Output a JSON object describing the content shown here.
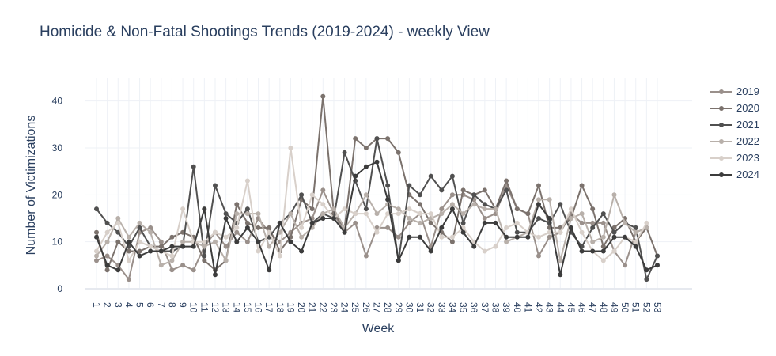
{
  "chart_data": {
    "type": "line",
    "title": "Homicide & Non-Fatal Shootings Trends (2019-2024) - weekly View",
    "xlabel": "Week",
    "ylabel": "Number of Victimizations",
    "ylim": [
      0,
      45
    ],
    "yticks": [
      0,
      10,
      20,
      30,
      40
    ],
    "grid": true,
    "legend_position": "right",
    "categories": [
      "1",
      "2",
      "3",
      "4",
      "5",
      "6",
      "7",
      "8",
      "9",
      "10",
      "11",
      "12",
      "13",
      "14",
      "15",
      "16",
      "17",
      "18",
      "19",
      "20",
      "21",
      "22",
      "23",
      "24",
      "25",
      "26",
      "27",
      "28",
      "29",
      "30",
      "31",
      "32",
      "33",
      "34",
      "35",
      "36",
      "37",
      "38",
      "39",
      "40",
      "41",
      "42",
      "43",
      "44",
      "45",
      "46",
      "47",
      "48",
      "49",
      "50",
      "51",
      "52",
      "53"
    ],
    "series": [
      {
        "name": "2019",
        "color": "#9a908b",
        "values": [
          6,
          7,
          5,
          2,
          12,
          13,
          10,
          4,
          5,
          4,
          9,
          12,
          9,
          12,
          10,
          15,
          12,
          10,
          12,
          14,
          15,
          21,
          16,
          12,
          14,
          7,
          13,
          13,
          11,
          14,
          16,
          9,
          17,
          20,
          20,
          19,
          15,
          16,
          22,
          17,
          16,
          7,
          11,
          12,
          16,
          14,
          14,
          14,
          8,
          5,
          12,
          13,
          null
        ]
      },
      {
        "name": "2020",
        "color": "#7b726d",
        "values": [
          12,
          4,
          10,
          8,
          8,
          9,
          9,
          11,
          12,
          11,
          6,
          4,
          6,
          18,
          14,
          13,
          13,
          8,
          11,
          19,
          17,
          41,
          16,
          13,
          32,
          30,
          32,
          32,
          29,
          20,
          18,
          14,
          12,
          10,
          21,
          20,
          21,
          17,
          23,
          17,
          16,
          22,
          13,
          13,
          15,
          22,
          17,
          9,
          13,
          15,
          10,
          13,
          7
        ]
      },
      {
        "name": "2021",
        "color": "#505050",
        "values": [
          17,
          14,
          12,
          9,
          13,
          9,
          8,
          8,
          9,
          26,
          7,
          22,
          16,
          14,
          17,
          10,
          11,
          14,
          16,
          20,
          14,
          16,
          15,
          29,
          23,
          17,
          32,
          22,
          6,
          22,
          20,
          24,
          21,
          24,
          14,
          20,
          18,
          17,
          21,
          12,
          12,
          15,
          14,
          18,
          12,
          9,
          13,
          16,
          12,
          14,
          13,
          2,
          7
        ]
      },
      {
        "name": "2022",
        "color": "#b8b0aa",
        "values": [
          7,
          10,
          15,
          11,
          14,
          12,
          5,
          6,
          10,
          10,
          9,
          10,
          6,
          16,
          16,
          16,
          9,
          12,
          16,
          11,
          13,
          16,
          17,
          13,
          16,
          20,
          16,
          18,
          17,
          15,
          14,
          15,
          16,
          18,
          16,
          18,
          17,
          17,
          10,
          11,
          12,
          19,
          19,
          6,
          15,
          16,
          10,
          11,
          20,
          14,
          12,
          13,
          null
        ]
      },
      {
        "name": "2023",
        "color": "#d8d0ca",
        "values": [
          8,
          12,
          14,
          6,
          10,
          9,
          8,
          7,
          17,
          10,
          10,
          12,
          11,
          13,
          23,
          8,
          12,
          7,
          30,
          13,
          20,
          18,
          15,
          17,
          16,
          16,
          12,
          16,
          16,
          17,
          16,
          16,
          11,
          11,
          13,
          10,
          8,
          9,
          13,
          14,
          12,
          11,
          12,
          12,
          17,
          12,
          8,
          6,
          8,
          11,
          10,
          14,
          null
        ]
      },
      {
        "name": "2024",
        "color": "#3c3c3c",
        "values": [
          11,
          5,
          4,
          10,
          7,
          8,
          8,
          9,
          9,
          9,
          17,
          3,
          15,
          10,
          13,
          10,
          4,
          14,
          10,
          8,
          14,
          15,
          15,
          12,
          24,
          26,
          27,
          19,
          6,
          11,
          11,
          8,
          13,
          17,
          12,
          9,
          14,
          14,
          11,
          11,
          11,
          18,
          15,
          3,
          13,
          8,
          8,
          8,
          11,
          11,
          9,
          4,
          5
        ]
      }
    ]
  }
}
